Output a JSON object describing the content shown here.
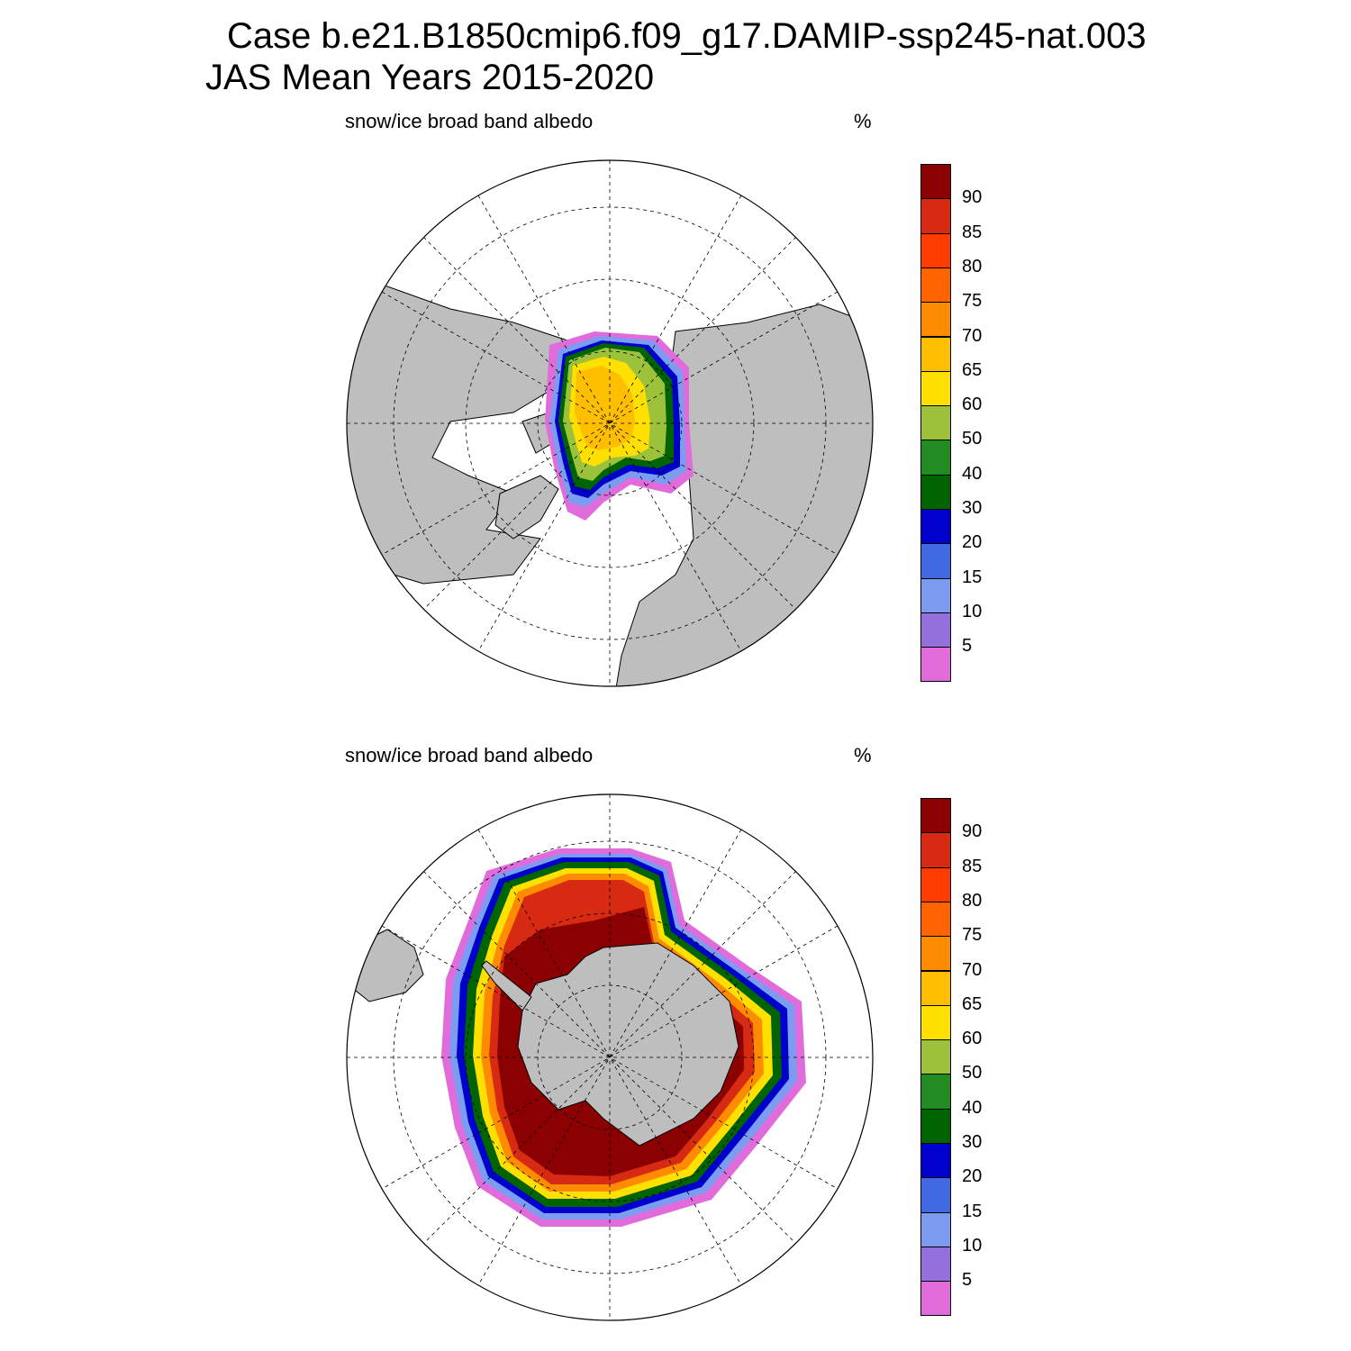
{
  "title": {
    "line1": "Case b.e21.B1850cmip6.f09_g17.DAMIP-ssp245-nat.003",
    "line2": "JAS Mean   Years 2015-2020"
  },
  "panels": [
    {
      "label": "snow/ice broad band albedo",
      "units": "%",
      "hemisphere": "north"
    },
    {
      "label": "snow/ice broad band albedo",
      "units": "%",
      "hemisphere": "south"
    }
  ],
  "colorbar": {
    "levels": [
      "90",
      "85",
      "80",
      "75",
      "70",
      "65",
      "60",
      "50",
      "40",
      "30",
      "20",
      "15",
      "10",
      "5"
    ],
    "colors": [
      "#8b0000",
      "#d62a12",
      "#ff3c00",
      "#ff6400",
      "#ff8c00",
      "#ffbf00",
      "#ffe000",
      "#9bc23a",
      "#228b22",
      "#006400",
      "#0000cd",
      "#4169e1",
      "#7b9cf0",
      "#9370db",
      "#e06cdc"
    ]
  },
  "style": {
    "land": "#bebebe",
    "ocean": "#ffffff"
  }
}
